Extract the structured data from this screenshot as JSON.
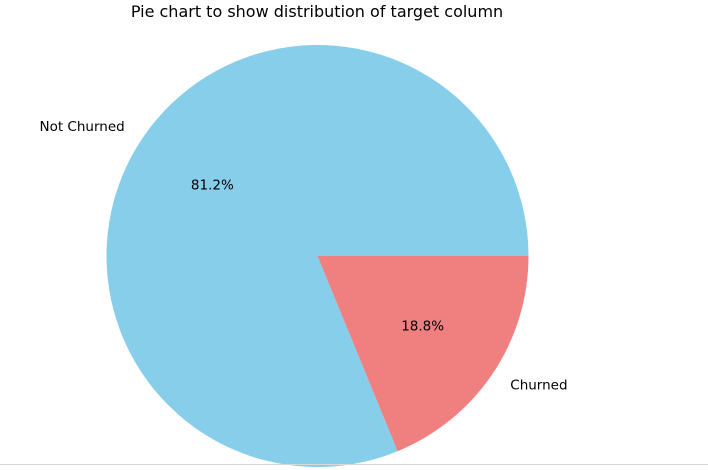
{
  "chart_data": {
    "type": "pie",
    "title": "Pie chart to show distribution of target column",
    "slices": [
      {
        "label": "Not Churned",
        "value": 81.2,
        "pct_label": "81.2%",
        "color": "#87CEEB"
      },
      {
        "label": "Churned",
        "value": 18.8,
        "pct_label": "18.8%",
        "color": "#F08080"
      }
    ],
    "start_angle_deg": 0,
    "direction": "counterclockwise",
    "legend": "none"
  }
}
